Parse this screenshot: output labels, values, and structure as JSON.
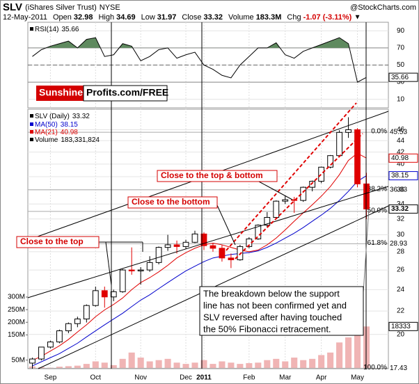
{
  "header": {
    "symbol": "SLV",
    "name": "(iShares Silver Trust)",
    "exchange": "NYSE",
    "source": "@StockCharts.com",
    "date": "12-May-2011",
    "stats": [
      {
        "label": "Open",
        "value": "32.98"
      },
      {
        "label": "High",
        "value": "34.69"
      },
      {
        "label": "Low",
        "value": "31.97"
      },
      {
        "label": "Close",
        "value": "33.32"
      },
      {
        "label": "Volume",
        "value": "183.3M"
      },
      {
        "label": "Chg",
        "value": "-1.07 (-3.11%)"
      }
    ]
  },
  "logo": {
    "part1": "Sunshine",
    "part2": "Profits.com/FREE"
  },
  "chart_data": {
    "type": "candlestick",
    "name": "SLV (Daily)",
    "categories": [
      null,
      null,
      "Sep",
      null,
      null,
      null,
      null,
      "Oct",
      null,
      null,
      null,
      null,
      "Nov",
      null,
      null,
      null,
      null,
      "Dec",
      null,
      "2011",
      null,
      null,
      null,
      null,
      "Feb",
      null,
      null,
      null,
      "Mar",
      null,
      null,
      null,
      "Apr",
      null,
      null,
      null,
      "May",
      null
    ],
    "open": [
      17.8,
      18.1,
      19.0,
      19.4,
      20.3,
      20.9,
      21.3,
      22.5,
      23.9,
      23.3,
      23.8,
      26.0,
      25.9,
      26.0,
      26.8,
      28.5,
      28.8,
      28.6,
      29.1,
      30.1,
      28.7,
      28.4,
      27.3,
      27.1,
      28.6,
      29.5,
      31.2,
      32.2,
      34.4,
      34.6,
      34.5,
      36.4,
      37.3,
      39.5,
      41.4,
      45.5,
      46.0,
      36.9
    ],
    "high": [
      18.2,
      19.0,
      19.5,
      20.4,
      21.0,
      21.5,
      22.6,
      24.3,
      24.3,
      24.0,
      26.1,
      28.5,
      26.3,
      27.5,
      28.6,
      30.0,
      29.3,
      29.4,
      30.5,
      30.3,
      29.0,
      28.8,
      27.8,
      28.8,
      29.7,
      31.3,
      32.9,
      34.5,
      35.2,
      35.0,
      36.5,
      37.4,
      39.6,
      41.5,
      45.9,
      48.4,
      46.3,
      38.6
    ],
    "low": [
      17.4,
      18.0,
      18.9,
      19.3,
      20.1,
      20.6,
      21.0,
      22.4,
      22.3,
      22.9,
      23.7,
      25.5,
      24.5,
      25.8,
      26.6,
      28.1,
      27.8,
      28.3,
      29.0,
      28.2,
      28.0,
      26.9,
      26.2,
      27.0,
      28.4,
      29.4,
      31.0,
      32.0,
      34.0,
      32.8,
      34.3,
      35.8,
      37.0,
      39.3,
      41.2,
      44.5,
      36.4,
      31.97
    ],
    "close": [
      18.1,
      19.0,
      19.4,
      20.3,
      20.9,
      21.3,
      22.5,
      23.9,
      23.3,
      23.8,
      26.0,
      25.9,
      26.0,
      26.8,
      28.5,
      28.8,
      28.6,
      29.1,
      30.1,
      28.7,
      28.4,
      27.3,
      27.1,
      28.6,
      29.5,
      31.2,
      32.2,
      34.4,
      34.6,
      34.5,
      36.4,
      37.3,
      39.5,
      41.4,
      45.5,
      46.0,
      36.9,
      33.32
    ],
    "up_color": "#ffffff",
    "down_color": "#e00000",
    "log_scale": true,
    "ylim": [
      17.4,
      50
    ],
    "yticks": [
      20,
      22,
      24,
      26,
      28,
      30,
      32,
      34,
      36,
      38,
      40,
      42,
      44,
      46
    ],
    "grid": true,
    "series": [
      {
        "name": "MA(50)",
        "color": "#0000cc",
        "values": [
          17.6,
          17.9,
          18.2,
          18.5,
          18.9,
          19.3,
          19.8,
          20.3,
          20.8,
          21.3,
          21.8,
          22.4,
          23.0,
          23.5,
          24.1,
          24.7,
          25.3,
          25.9,
          26.4,
          26.9,
          27.3,
          27.5,
          27.7,
          27.8,
          27.9,
          28.1,
          28.5,
          29.0,
          29.6,
          30.2,
          30.9,
          31.7,
          32.5,
          33.4,
          34.5,
          35.8,
          37.3,
          38.15
        ]
      },
      {
        "name": "MA(21)",
        "color": "#e00000",
        "values": [
          18.0,
          18.3,
          18.7,
          19.1,
          19.6,
          20.2,
          20.8,
          21.5,
          22.1,
          22.6,
          23.2,
          24.0,
          24.7,
          25.2,
          25.8,
          26.5,
          27.3,
          27.9,
          28.4,
          28.8,
          29.0,
          28.8,
          28.5,
          28.2,
          28.0,
          28.2,
          28.8,
          29.6,
          30.6,
          31.7,
          32.8,
          33.9,
          35.1,
          36.5,
          38.3,
          40.6,
          41.8,
          40.98
        ]
      }
    ],
    "volume": {
      "name": "Volume",
      "total_label": "183,331,824",
      "box_label": "18333",
      "color": "#f0b4b4",
      "values": [
        25,
        22,
        20,
        24,
        26,
        28,
        35,
        45,
        40,
        30,
        55,
        80,
        60,
        45,
        50,
        55,
        40,
        35,
        40,
        50,
        35,
        45,
        40,
        35,
        38,
        40,
        50,
        55,
        45,
        60,
        50,
        55,
        70,
        80,
        120,
        140,
        190,
        183.3
      ],
      "ylim": [
        16,
        300
      ],
      "yticks": [
        {
          "value": 50,
          "label": "50M"
        },
        {
          "value": 150,
          "label": "150M"
        },
        {
          "value": 200,
          "label": "200M"
        },
        {
          "value": 250,
          "label": "250M"
        },
        {
          "value": 300,
          "label": "300M"
        }
      ]
    },
    "rsi": {
      "name": "RSI(14)",
      "fill_color": "#5f8a5f",
      "overbought": 70,
      "oversold": 30,
      "midline": 50,
      "values": [
        60,
        68,
        72,
        75,
        78,
        70,
        80,
        82,
        60,
        62,
        75,
        72,
        55,
        60,
        68,
        70,
        58,
        62,
        65,
        50,
        45,
        38,
        35,
        50,
        60,
        70,
        70,
        76,
        62,
        58,
        66,
        70,
        74,
        78,
        82,
        75,
        30,
        35.66
      ],
      "ylim": [
        0,
        100
      ],
      "yticks": [
        10,
        30,
        50,
        70,
        90
      ]
    },
    "fibonacci": {
      "names": [
        "0.0%",
        "38.2%",
        "50.0%",
        "61.8%",
        "100.0%"
      ],
      "values": [
        45.53,
        36.03,
        33.0,
        28.93,
        17.43
      ],
      "value_labels": [
        "45.53",
        "36.03",
        null,
        "28.93",
        "17.43"
      ]
    },
    "annotations": [
      "Close to the top",
      "Close to the bottom",
      "Close to the top & bottom"
    ],
    "note": [
      "The breakdown below the support",
      "line has not been confirmed yet and",
      "SLV reversed after having touched",
      "the 50% Fibonacci retracement."
    ]
  }
}
